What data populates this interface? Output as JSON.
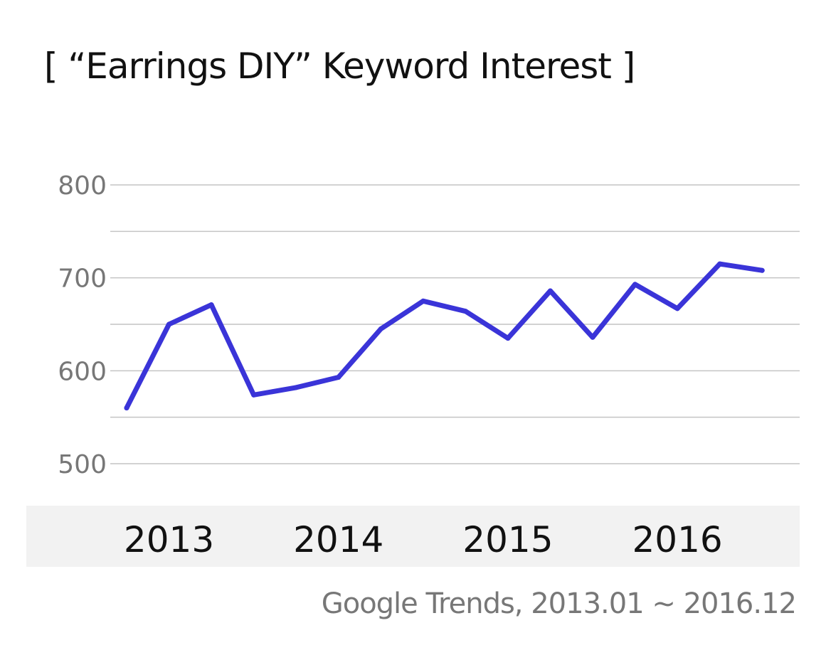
{
  "chart_data": {
    "type": "line",
    "title": "[ “Earrings DIY” Keyword Interest ]",
    "source": "Google Trends, 2013.01 ~ 2016.12",
    "xlabel": "",
    "ylabel": "",
    "ylim": [
      500,
      800
    ],
    "y_gridlines": [
      500,
      550,
      600,
      650,
      700,
      750,
      800
    ],
    "y_ticks": [
      "500",
      "600",
      "700",
      "800"
    ],
    "x_tick_labels": [
      {
        "label": "2013",
        "x": 2013.25
      },
      {
        "label": "2014",
        "x": 2014.25
      },
      {
        "label": "2015",
        "x": 2015.25
      },
      {
        "label": "2016",
        "x": 2016.25
      }
    ],
    "xlim": [
      2013.0,
      2016.875
    ],
    "x_axis_band": true,
    "grid": true,
    "series": [
      {
        "color": "#3a34d8",
        "x": [
          2013.0,
          2013.25,
          2013.5,
          2013.75,
          2014.0,
          2014.25,
          2014.5,
          2014.75,
          2015.0,
          2015.25,
          2015.5,
          2015.75,
          2016.0,
          2016.25,
          2016.5,
          2016.75
        ],
        "values": [
          560,
          650,
          671,
          574,
          582,
          593,
          645,
          675,
          664,
          635,
          686,
          636,
          693,
          667,
          715,
          708
        ]
      }
    ]
  }
}
